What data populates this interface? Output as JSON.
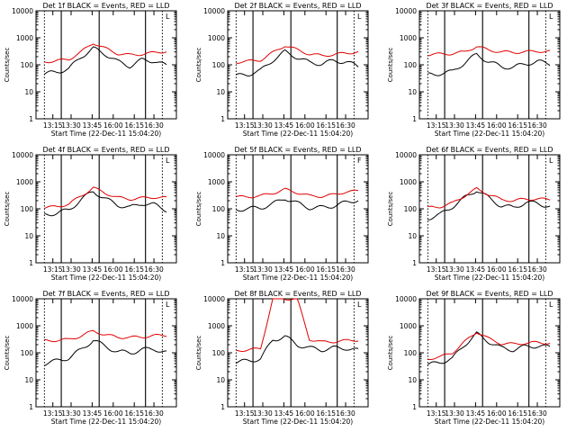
{
  "figure": {
    "ylabel": "Counts/sec",
    "xlabel": "Start Time (22-Dec-11 15:04:20)",
    "xticks": [
      "13:15",
      "13:30",
      "13:45",
      "16:00",
      "16:15",
      "16:30"
    ],
    "yticks": [
      "1",
      "10",
      "100",
      "1000",
      "10000"
    ],
    "colors": {
      "events": "#000000",
      "lld": "#e00000",
      "background": "#ffffff"
    }
  },
  "chart_data": [
    {
      "type": "line",
      "title": "Det 1f BLACK = Events, RED = LLD",
      "corner_mark": "L",
      "yscale": "log",
      "ylim": [
        1,
        10000
      ],
      "x": [
        0,
        10,
        20,
        30,
        40,
        50,
        60,
        70,
        80,
        90,
        100
      ],
      "series": [
        {
          "values": [
            45,
            55,
            70,
            200,
            400,
            250,
            130,
            90,
            150,
            140,
            90
          ]
        },
        {
          "values": [
            130,
            140,
            160,
            300,
            650,
            400,
            260,
            230,
            250,
            280,
            320
          ]
        }
      ]
    },
    {
      "type": "line",
      "title": "Det 2f BLACK = Events, RED = LLD",
      "corner_mark": "L",
      "yscale": "log",
      "ylim": [
        1,
        10000
      ],
      "x": [
        0,
        10,
        20,
        30,
        40,
        50,
        60,
        70,
        80,
        90,
        100
      ],
      "series": [
        {
          "values": [
            38,
            45,
            60,
            150,
            300,
            190,
            120,
            110,
            140,
            130,
            85
          ]
        },
        {
          "values": [
            125,
            135,
            150,
            280,
            520,
            360,
            250,
            220,
            240,
            270,
            300
          ]
        }
      ]
    },
    {
      "type": "line",
      "title": "Det 3f BLACK = Events, RED = LLD",
      "corner_mark": "L",
      "yscale": "log",
      "ylim": [
        1,
        10000
      ],
      "x": [
        0,
        10,
        20,
        30,
        40,
        50,
        60,
        70,
        80,
        90,
        100
      ],
      "series": [
        {
          "values": [
            42,
            48,
            55,
            120,
            240,
            130,
            85,
            80,
            110,
            130,
            110
          ]
        },
        {
          "values": [
            240,
            250,
            260,
            300,
            480,
            350,
            300,
            290,
            300,
            320,
            310
          ]
        }
      ]
    },
    {
      "type": "line",
      "title": "Det 4f BLACK = Events, RED = LLD",
      "corner_mark": "L",
      "yscale": "log",
      "ylim": [
        1,
        10000
      ],
      "x": [
        0,
        10,
        20,
        30,
        40,
        50,
        60,
        70,
        80,
        90,
        100
      ],
      "series": [
        {
          "values": [
            60,
            70,
            90,
            220,
            450,
            230,
            140,
            110,
            160,
            140,
            90
          ]
        },
        {
          "values": [
            110,
            120,
            150,
            300,
            600,
            380,
            260,
            230,
            250,
            270,
            250
          ]
        }
      ]
    },
    {
      "type": "line",
      "title": "Det 5f BLACK = Events, RED = LLD",
      "corner_mark": "F",
      "yscale": "log",
      "ylim": [
        1,
        10000
      ],
      "x": [
        0,
        10,
        20,
        30,
        40,
        50,
        60,
        70,
        80,
        90,
        100
      ],
      "series": [
        {
          "values": [
            95,
            100,
            110,
            150,
            250,
            160,
            110,
            110,
            130,
            170,
            220
          ]
        },
        {
          "values": [
            270,
            280,
            300,
            380,
            520,
            400,
            300,
            290,
            330,
            430,
            450
          ]
        }
      ]
    },
    {
      "type": "line",
      "title": "Det 6f BLACK = Events, RED = LLD",
      "corner_mark": "L",
      "yscale": "log",
      "ylim": [
        1,
        10000
      ],
      "x": [
        0,
        10,
        20,
        30,
        40,
        50,
        60,
        70,
        80,
        90,
        100
      ],
      "series": [
        {
          "values": [
            45,
            60,
            120,
            250,
            500,
            250,
            130,
            110,
            170,
            160,
            120
          ]
        },
        {
          "values": [
            110,
            120,
            160,
            300,
            550,
            340,
            220,
            200,
            230,
            230,
            220
          ]
        }
      ]
    },
    {
      "type": "line",
      "title": "Det 7f BLACK = Events, RED = LLD",
      "corner_mark": "L",
      "yscale": "log",
      "ylim": [
        1,
        10000
      ],
      "x": [
        0,
        10,
        20,
        30,
        40,
        50,
        60,
        70,
        80,
        90,
        100
      ],
      "series": [
        {
          "values": [
            40,
            50,
            65,
            130,
            300,
            170,
            110,
            100,
            130,
            140,
            100
          ]
        },
        {
          "values": [
            280,
            290,
            310,
            420,
            650,
            460,
            380,
            370,
            390,
            430,
            450
          ]
        }
      ]
    },
    {
      "type": "line",
      "title": "Det 8f BLACK = Events, RED = LLD",
      "corner_mark": "L",
      "yscale": "log",
      "ylim": [
        1,
        10000
      ],
      "x": [
        0,
        10,
        20,
        30,
        40,
        50,
        60,
        70,
        80,
        90,
        100
      ],
      "series": [
        {
          "values": [
            45,
            50,
            60,
            300,
            400,
            200,
            150,
            130,
            150,
            150,
            120
          ]
        },
        {
          "values": [
            120,
            130,
            140,
            10000,
            10000,
            10000,
            320,
            250,
            260,
            280,
            300
          ]
        }
      ]
    },
    {
      "type": "line",
      "title": "Det 9f BLACK = Events, RED = LLD",
      "corner_mark": "L",
      "yscale": "log",
      "ylim": [
        1,
        10000
      ],
      "x": [
        0,
        10,
        20,
        30,
        40,
        50,
        60,
        70,
        80,
        90,
        100
      ],
      "series": [
        {
          "values": [
            35,
            45,
            60,
            200,
            500,
            260,
            150,
            130,
            170,
            180,
            160
          ]
        },
        {
          "values": [
            60,
            70,
            100,
            250,
            600,
            330,
            220,
            210,
            230,
            240,
            230
          ]
        }
      ]
    }
  ]
}
